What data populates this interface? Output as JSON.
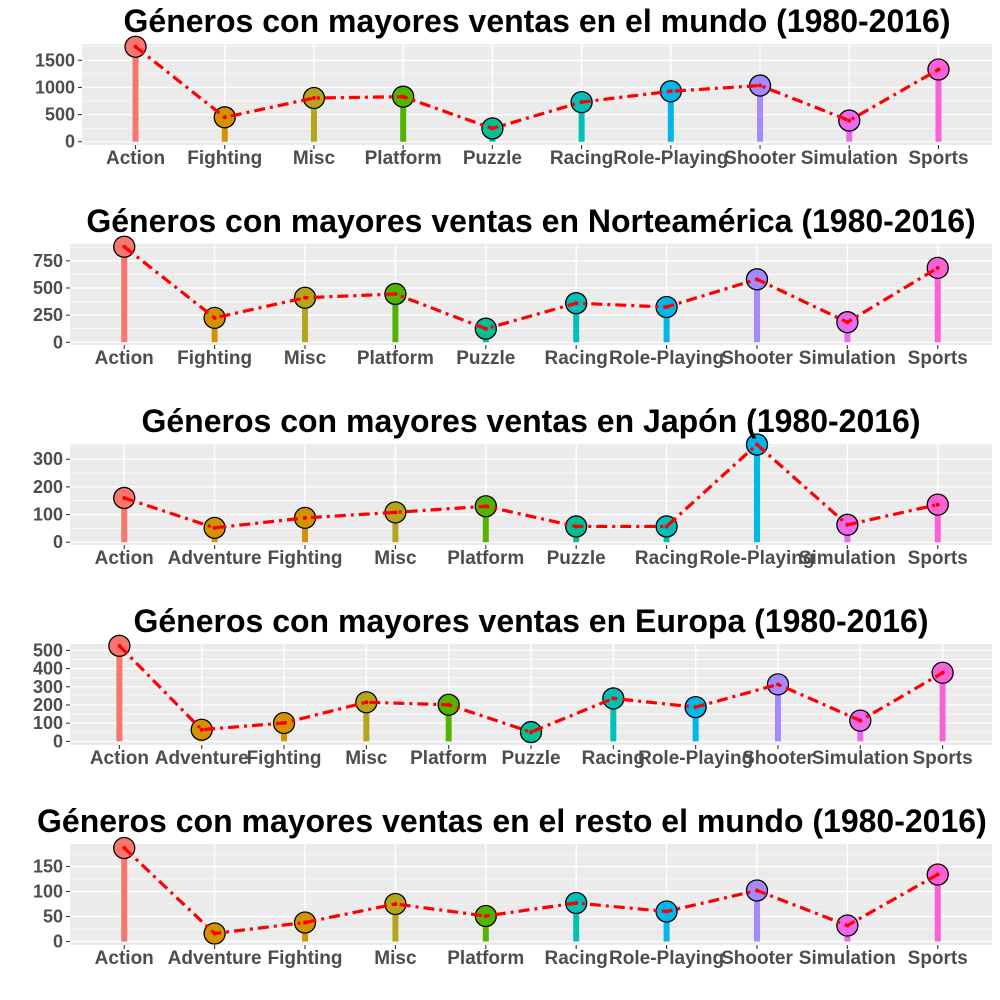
{
  "chart_data": [
    {
      "type": "lollipop",
      "title": "Géneros con mayores ventas en el mundo (1980-2016)",
      "categories": [
        "Action",
        "Fighting",
        "Misc",
        "Platform",
        "Puzzle",
        "Racing",
        "Role-Playing",
        "Shooter",
        "Simulation",
        "Sports"
      ],
      "values": [
        1750,
        450,
        805,
        830,
        245,
        730,
        930,
        1035,
        390,
        1330
      ],
      "ylim": [
        -60,
        1800
      ],
      "yticks": [
        0,
        500,
        1000,
        1500
      ],
      "xlabel": "",
      "ylabel": "",
      "grid": true,
      "legend": "none",
      "trend_line": {
        "color": "#ff0000",
        "style": "dash-dot"
      }
    },
    {
      "type": "lollipop",
      "title": "Géneros con mayores ventas en Norteamérica (1980-2016)",
      "categories": [
        "Action",
        "Fighting",
        "Misc",
        "Platform",
        "Puzzle",
        "Racing",
        "Role-Playing",
        "Shooter",
        "Simulation",
        "Sports"
      ],
      "values": [
        880,
        225,
        410,
        445,
        125,
        360,
        325,
        580,
        185,
        685
      ],
      "ylim": [
        -25,
        905
      ],
      "yticks": [
        0,
        250,
        500,
        750
      ],
      "xlabel": "",
      "ylabel": "",
      "grid": true,
      "legend": "none",
      "trend_line": {
        "color": "#ff0000",
        "style": "dash-dot"
      }
    },
    {
      "type": "lollipop",
      "title": "Géneros con mayores ventas en Japón (1980-2016)",
      "categories": [
        "Action",
        "Adventure",
        "Fighting",
        "Misc",
        "Platform",
        "Puzzle",
        "Racing",
        "Role-Playing",
        "Simulation",
        "Sports"
      ],
      "values": [
        160,
        52,
        88,
        108,
        130,
        57,
        57,
        353,
        63,
        136
      ],
      "ylim": [
        -10,
        355
      ],
      "yticks": [
        0,
        100,
        200,
        300
      ],
      "xlabel": "",
      "ylabel": "",
      "grid": true,
      "legend": "none",
      "trend_line": {
        "color": "#ff0000",
        "style": "dash-dot"
      }
    },
    {
      "type": "lollipop",
      "title": "Géneros con mayores ventas en Europa (1980-2016)",
      "categories": [
        "Action",
        "Adventure",
        "Fighting",
        "Misc",
        "Platform",
        "Puzzle",
        "Racing",
        "Role-Playing",
        "Shooter",
        "Simulation",
        "Sports"
      ],
      "values": [
        525,
        64,
        101,
        215,
        201,
        51,
        236,
        188,
        313,
        114,
        377
      ],
      "ylim": [
        -20,
        535
      ],
      "yticks": [
        0,
        100,
        200,
        300,
        400,
        500
      ],
      "xlabel": "",
      "ylabel": "",
      "grid": true,
      "legend": "none",
      "trend_line": {
        "color": "#ff0000",
        "style": "dash-dot"
      }
    },
    {
      "type": "lollipop",
      "title": "Géneros con mayores ventas en el resto el mundo (1980-2016)",
      "categories": [
        "Action",
        "Adventure",
        "Fighting",
        "Misc",
        "Platform",
        "Racing",
        "Role-Playing",
        "Shooter",
        "Simulation",
        "Sports"
      ],
      "values": [
        187,
        16,
        38,
        75,
        51,
        77,
        60,
        102,
        32,
        134
      ],
      "ylim": [
        -7,
        195
      ],
      "yticks": [
        0,
        50,
        100,
        150
      ],
      "xlabel": "",
      "ylabel": "",
      "grid": true,
      "legend": "none",
      "trend_line": {
        "color": "#ff0000",
        "style": "dash-dot"
      }
    }
  ],
  "colors": {
    "Action": "#f8766d",
    "Adventure": "#d39200",
    "Fighting": "#d39200",
    "Misc": "#b4a51d",
    "Platform": "#53b400",
    "Puzzle": "#00c094",
    "Racing": "#00c0b8",
    "Role-Playing": "#00b6eb",
    "Shooter": "#a58aff",
    "Simulation": "#ed68ed",
    "Sports": "#fb61d7",
    "trend": "#ff0000",
    "panel_background": "#ebebeb",
    "grid": "#ffffff"
  }
}
